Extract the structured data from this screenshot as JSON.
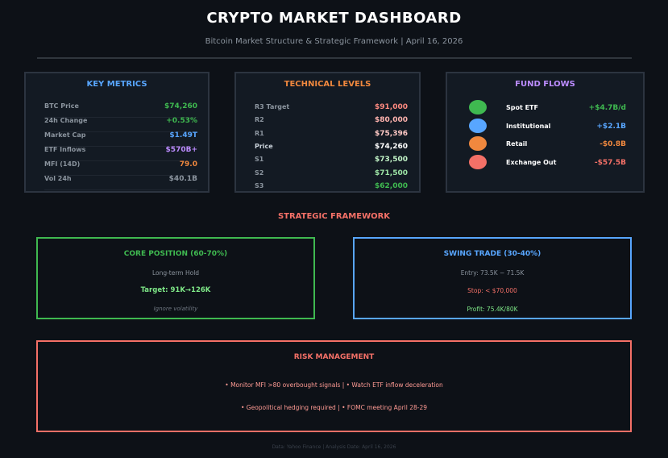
{
  "header": {
    "title": "CRYPTO MARKET DASHBOARD",
    "subtitle": "Bitcoin Market Structure & Strategic Framework | April 16, 2026"
  },
  "key_metrics": {
    "title": "KEY METRICS",
    "title_color": "#58a6ff",
    "rows": [
      {
        "label": "BTC Price",
        "value": "$74,260",
        "color": "#3fb950"
      },
      {
        "label": "24h Change",
        "value": "+0.53%",
        "color": "#3fb950"
      },
      {
        "label": "Market Cap",
        "value": "$1.49T",
        "color": "#58a6ff"
      },
      {
        "label": "ETF Inflows",
        "value": "$570B+",
        "color": "#bc8cff"
      },
      {
        "label": "MFI (14D)",
        "value": "79.0",
        "color": "#f0883e"
      },
      {
        "label": "Vol 24h",
        "value": "$40.1B",
        "color": "#8b949e"
      }
    ]
  },
  "technical_levels": {
    "title": "TECHNICAL LEVELS",
    "title_color": "#f0883e",
    "rows": [
      {
        "label": "R3 Target",
        "value": "$91,000",
        "color": "#ff8a80"
      },
      {
        "label": "R2",
        "value": "$80,000",
        "color": "#ffb3ae"
      },
      {
        "label": "R1",
        "value": "$75,396",
        "color": "#ffc9c5"
      },
      {
        "label": "Price",
        "value": "$74,260",
        "color": "#ffffff"
      },
      {
        "label": "S1",
        "value": "$73,500",
        "color": "#c3f5c8"
      },
      {
        "label": "S2",
        "value": "$71,500",
        "color": "#9ee6a6"
      },
      {
        "label": "S3",
        "value": "$62,000",
        "color": "#3fb950"
      }
    ]
  },
  "fund_flows": {
    "title": "FUND FLOWS",
    "title_color": "#bc8cff",
    "rows": [
      {
        "label": "Spot ETF",
        "value": "+$4.7B/d",
        "color": "#3fb950",
        "dot": "#3fb950"
      },
      {
        "label": "Institutional",
        "value": "+$2.1B",
        "color": "#58a6ff",
        "dot": "#58a6ff"
      },
      {
        "label": "Retail",
        "value": "-$0.8B",
        "color": "#f0883e",
        "dot": "#f0883e"
      },
      {
        "label": "Exchange Out",
        "value": "-$57.5B",
        "color": "#f47067",
        "dot": "#f47067"
      }
    ]
  },
  "strategic": {
    "title": "STRATEGIC FRAMEWORK",
    "core": {
      "title": "CORE POSITION (60-70%)",
      "line1": "Long-term Hold",
      "target_label": "Target: ",
      "target_value": "91K→126K",
      "line3": "Ignore volatility"
    },
    "swing": {
      "title": "SWING TRADE (30-40%)",
      "entry": "Entry: 73.5K − 71.5K",
      "stop": "Stop: < $70,000",
      "profit": "Profit: 75.4K/80K"
    }
  },
  "risk": {
    "title": "RISK MANAGEMENT",
    "line1": "• Monitor MFI >80 overbought signals  |  • Watch ETF inflow deceleration",
    "line2": "• Geopolitical hedging required  |  • FOMC meeting April 28-29"
  },
  "footer": "Data: Yahoo Finance | Analysis Date: April 16, 2026"
}
